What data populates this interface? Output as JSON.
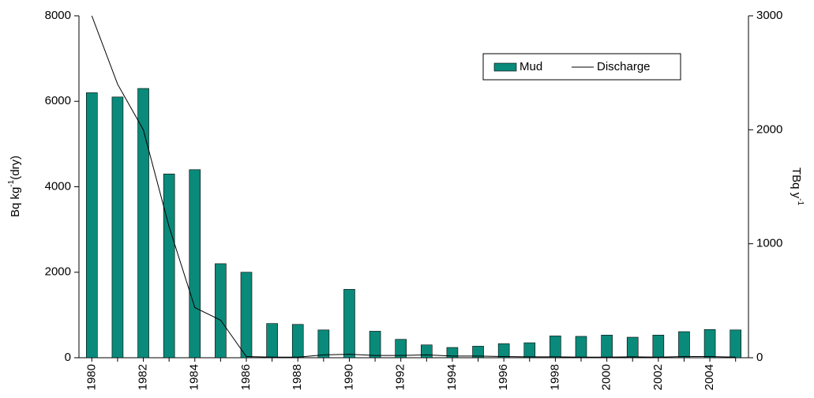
{
  "chart_data": {
    "type": "bar",
    "categories": [
      "1980",
      null,
      "1982",
      null,
      "1984",
      null,
      "1986",
      null,
      "1988",
      null,
      "1990",
      null,
      "1992",
      null,
      "1994",
      null,
      "1996",
      null,
      "1998",
      null,
      "2000",
      null,
      "2002",
      null,
      "2004",
      null
    ],
    "series": [
      {
        "name": "Mud",
        "type": "bar",
        "color": "#0a8a7a",
        "values": [
          6200,
          6100,
          6300,
          4300,
          4400,
          2200,
          2000,
          800,
          780,
          650,
          1600,
          620,
          430,
          300,
          240,
          270,
          330,
          350,
          510,
          500,
          530,
          480,
          530,
          610,
          660,
          650
        ]
      },
      {
        "name": "Discharge",
        "type": "line",
        "color": "#000000",
        "axis": "y2",
        "values": [
          3000,
          2400,
          2000,
          1150,
          440,
          330,
          10,
          5,
          5,
          25,
          30,
          20,
          20,
          25,
          15,
          15,
          10,
          8,
          8,
          5,
          5,
          8,
          5,
          10,
          10,
          5
        ]
      }
    ],
    "ylabel": [
      "Bq kg",
      "-1",
      "(dry)"
    ],
    "y2label": [
      "TBq y",
      "-1"
    ],
    "ylim": [
      0,
      8000
    ],
    "yticks": [
      0,
      2000,
      4000,
      6000,
      8000
    ],
    "y2lim": [
      0,
      3000
    ],
    "y2ticks": [
      0,
      1000,
      2000,
      3000
    ],
    "legend": "upper right"
  }
}
